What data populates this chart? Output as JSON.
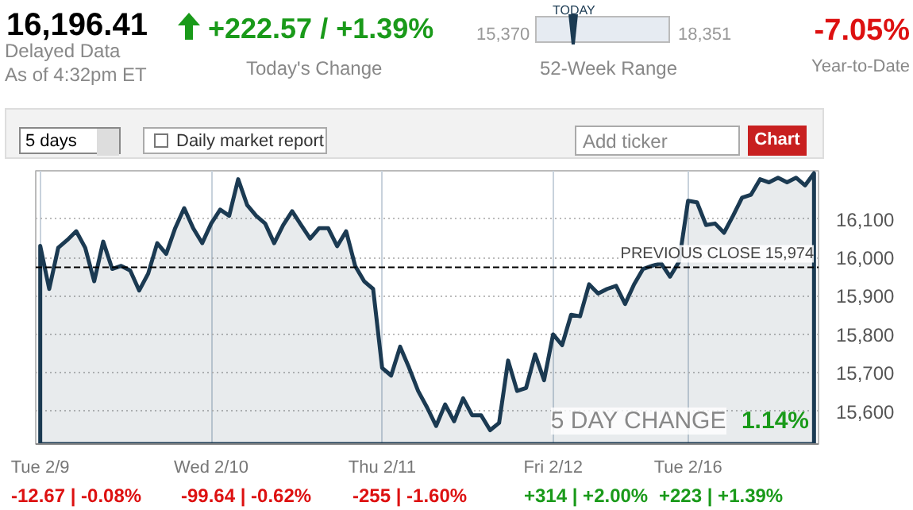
{
  "chart_data": {
    "type": "area",
    "color": "#1b3a52",
    "values": [
      16030,
      15918,
      16025,
      16045,
      16068,
      16025,
      15938,
      16041,
      15970,
      15978,
      15966,
      15914,
      15958,
      16037,
      16009,
      16076,
      16128,
      16076,
      16037,
      16088,
      16124,
      16108,
      16203,
      16136,
      16108,
      16088,
      16037,
      16084,
      16120,
      16084,
      16049,
      16076,
      16076,
      16029,
      16068,
      15978,
      15938,
      15918,
      15713,
      15693,
      15768,
      15713,
      15653,
      15610,
      15562,
      15618,
      15574,
      15634,
      15590,
      15590,
      15551,
      15570,
      15732,
      15653,
      15661,
      15748,
      15681,
      15800,
      15772,
      15851,
      15847,
      15930,
      15906,
      15918,
      15926,
      15879,
      15930,
      15970,
      15978,
      15985,
      15950,
      15989,
      16147,
      16143,
      16084,
      16088,
      16064,
      16108,
      16155,
      16163,
      16203,
      16195,
      16207,
      16195,
      16207,
      16187,
      16219
    ],
    "categories": [
      "Tue 2/9",
      null,
      null,
      null,
      null,
      null,
      null,
      null,
      null,
      null,
      null,
      null,
      null,
      null,
      null,
      null,
      null,
      null,
      null,
      "Wed 2/10",
      null,
      null,
      null,
      null,
      null,
      null,
      null,
      null,
      null,
      null,
      null,
      null,
      null,
      null,
      null,
      null,
      null,
      null,
      "Thu 2/11",
      null,
      null,
      null,
      null,
      null,
      null,
      null,
      null,
      null,
      null,
      null,
      null,
      null,
      null,
      null,
      null,
      null,
      null,
      "Fri 2/12",
      null,
      null,
      null,
      null,
      null,
      null,
      null,
      null,
      null,
      null,
      null,
      null,
      null,
      null,
      "Tue 2/16",
      null,
      null,
      null,
      null,
      null,
      null,
      null,
      null,
      null,
      null,
      null,
      null,
      null,
      null
    ],
    "ylim": [
      15515,
      16225
    ],
    "yticks": [
      {
        "value": 15600,
        "label": "15,600"
      },
      {
        "value": 15700,
        "label": "15,700"
      },
      {
        "value": 15800,
        "label": "15,800"
      },
      {
        "value": 15900,
        "label": "15,900"
      },
      {
        "value": 16000,
        "label": "16,000"
      },
      {
        "value": 16100,
        "label": "16,100"
      }
    ],
    "grid": true,
    "ref_lines": [
      {
        "axis": "y",
        "value": 15974,
        "label": "PREVIOUS CLOSE 15,974",
        "color": "#000000",
        "line_style": "dashed"
      }
    ],
    "annotations": [
      "16,196.41",
      "Delayed Data",
      "As of 4:32pm ET",
      "+222.57 / +1.39%",
      "Today's Change",
      "15,370",
      "TODAY",
      "18,351",
      "52-Week Range",
      "-7.05%",
      "Year-to-Date",
      "5 days",
      "Daily market report",
      "Add ticker",
      "Chart",
      "-12.67 | -0.08%",
      "-99.64 | -0.62%",
      "-255 | -1.60%",
      "+314 | +2.00%",
      "+223 | +1.39%",
      "5 DAY CHANGE 1.14%"
    ]
  }
}
